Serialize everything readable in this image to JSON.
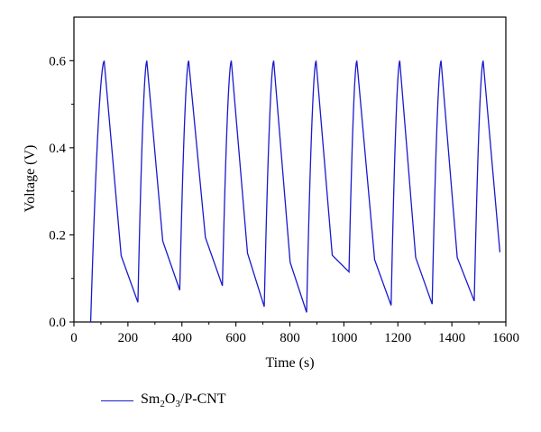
{
  "chart_data": {
    "type": "line",
    "xlabel": "Time (s)",
    "ylabel": "Voltage (V)",
    "xlim": [
      0,
      1600
    ],
    "ylim": [
      0,
      0.7
    ],
    "x_ticks": [
      0,
      200,
      400,
      600,
      800,
      1000,
      1200,
      1400,
      1600
    ],
    "x_tick_labels": [
      "0",
      "200",
      "400",
      "600",
      "800",
      "1000",
      "1200",
      "1400",
      "1600"
    ],
    "y_ticks": [
      0.0,
      0.2,
      0.4,
      0.6
    ],
    "y_tick_labels": [
      "0.0",
      "0.2",
      "0.4",
      "0.6"
    ],
    "grid": false,
    "legend_position": "bottom-left",
    "series": [
      {
        "name": "Sm2O3/P-CNT",
        "color": "#1a1acc",
        "cycles": [
          {
            "start": [
              62,
              0.0
            ],
            "peak": [
              112,
              0.6
            ],
            "knee": [
              175,
              0.152
            ],
            "min": [
              237,
              0.045
            ]
          },
          {
            "start": [
              237,
              0.045
            ],
            "peak": [
              270,
              0.6
            ],
            "knee": [
              329,
              0.186
            ],
            "min": [
              392,
              0.073
            ]
          },
          {
            "start": [
              392,
              0.073
            ],
            "peak": [
              425,
              0.6
            ],
            "knee": [
              487,
              0.194
            ],
            "min": [
              550,
              0.083
            ]
          },
          {
            "start": [
              550,
              0.083
            ],
            "peak": [
              583,
              0.6
            ],
            "knee": [
              643,
              0.158
            ],
            "min": [
              705,
              0.035
            ]
          },
          {
            "start": [
              705,
              0.035
            ],
            "peak": [
              740,
              0.6
            ],
            "knee": [
              801,
              0.137
            ],
            "min": [
              862,
              0.022
            ]
          },
          {
            "start": [
              862,
              0.022
            ],
            "peak": [
              897,
              0.6
            ],
            "knee": [
              957,
              0.153
            ],
            "min": [
              1019,
              0.115
            ]
          },
          {
            "start": [
              1019,
              0.115
            ],
            "peak": [
              1048,
              0.6
            ],
            "knee": [
              1114,
              0.143
            ],
            "min": [
              1175,
              0.038
            ]
          },
          {
            "start": [
              1175,
              0.038
            ],
            "peak": [
              1207,
              0.6
            ],
            "knee": [
              1266,
              0.148
            ],
            "min": [
              1327,
              0.041
            ]
          },
          {
            "start": [
              1327,
              0.041
            ],
            "peak": [
              1360,
              0.6
            ],
            "knee": [
              1420,
              0.148
            ],
            "min": [
              1483,
              0.048
            ]
          },
          {
            "start": [
              1483,
              0.048
            ],
            "peak": [
              1516,
              0.6
            ],
            "knee": [
              1578,
              0.16
            ],
            "min": null
          }
        ]
      }
    ]
  },
  "legend": {
    "label_main": "Sm",
    "sub1": "2",
    "label_mid": "O",
    "sub2": "3",
    "label_tail": "/P-CNT"
  }
}
